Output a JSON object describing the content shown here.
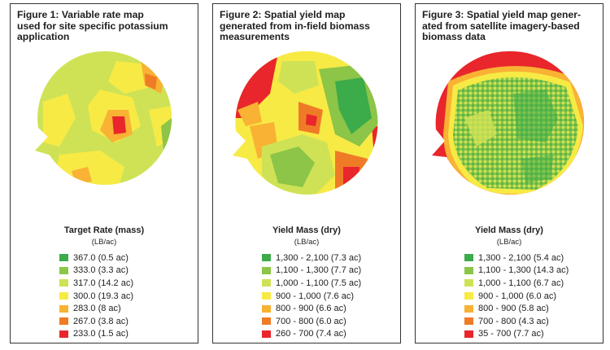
{
  "figures": [
    {
      "title": "Figure 1: Variable rate map used for site specific potassium application",
      "legend_title": "Target Rate (mass)",
      "legend_unit": "(LB/ac)",
      "legend": [
        {
          "label": "367.0 (0.5 ac)",
          "color": "#3cab4a"
        },
        {
          "label": "333.0 (3.3 ac)",
          "color": "#8cc547"
        },
        {
          "label": "317.0 (14.2 ac)",
          "color": "#cfe256"
        },
        {
          "label": "300.0 (19.3 ac)",
          "color": "#f7ea45"
        },
        {
          "label": "283.0 (8 ac)",
          "color": "#f9b233"
        },
        {
          "label": "267.0 (3.8 ac)",
          "color": "#f07b26"
        },
        {
          "label": "233.0 (1.5 ac)",
          "color": "#e8262b"
        }
      ]
    },
    {
      "title": "Figure 2: Spatial yield map generated from in-field biomass measurements",
      "legend_title": "Yield Mass (dry)",
      "legend_unit": "(LB/ac)",
      "legend": [
        {
          "label": "1,300 - 2,100 (7.3 ac)",
          "color": "#3cab4a"
        },
        {
          "label": "1,100 - 1,300 (7.7 ac)",
          "color": "#8cc547"
        },
        {
          "label": "1,000 - 1,100 (7.5 ac)",
          "color": "#cfe256"
        },
        {
          "label": "900 - 1,000 (7.6 ac)",
          "color": "#f7ea45"
        },
        {
          "label": "800 - 900 (6.6 ac)",
          "color": "#f9b233"
        },
        {
          "label": "700 - 800 (6.0 ac)",
          "color": "#f07b26"
        },
        {
          "label": "260 - 700 (7.4 ac)",
          "color": "#e8262b"
        }
      ]
    },
    {
      "title": "Figure 3: Spatial yield map generated from satellite imagery-based biomass data",
      "legend_title": "Yield Mass (dry)",
      "legend_unit": "(LB/ac)",
      "legend": [
        {
          "label": "1,300 - 2,100 (5.4 ac)",
          "color": "#3cab4a"
        },
        {
          "label": "1,100 - 1,300 (14.3 ac)",
          "color": "#8cc547"
        },
        {
          "label": "1,000 - 1,100 (6.7 ac)",
          "color": "#cfe256"
        },
        {
          "label": "900 - 1,000 (6.0 ac)",
          "color": "#f7ea45"
        },
        {
          "label": "800 - 900 (5.8 ac)",
          "color": "#f9b233"
        },
        {
          "label": "700 - 800 (4.3 ac)",
          "color": "#f07b26"
        },
        {
          "label": "35 - 700 (7.7 ac)",
          "color": "#e8262b"
        }
      ]
    }
  ]
}
